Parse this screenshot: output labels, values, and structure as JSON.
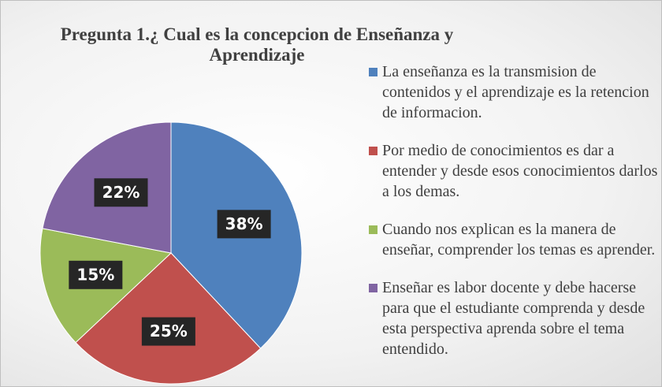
{
  "chart_data": {
    "type": "pie",
    "title": "Pregunta 1.¿ Cual es la concepcion de Enseñanza y Aprendizaje",
    "categories": [
      "La enseñanza es la transmision de contenidos y el aprendizaje es la retencion de informacion.",
      "Por medio de conocimientos es dar a entender y desde esos conocimientos darlos a los demas.",
      "Cuando nos explican es la manera de enseñar, comprender los temas es aprender.",
      "Enseñar es labor docente y debe hacerse para que el estudiante comprenda y desde esta perspectiva aprenda sobre el tema entendido."
    ],
    "values": [
      38,
      25,
      15,
      22
    ],
    "value_labels": [
      "38%",
      "25%",
      "15%",
      "22%"
    ],
    "colors": [
      "#4f81bd",
      "#c0504d",
      "#9bbb59",
      "#8064a2"
    ],
    "legend": "right"
  }
}
